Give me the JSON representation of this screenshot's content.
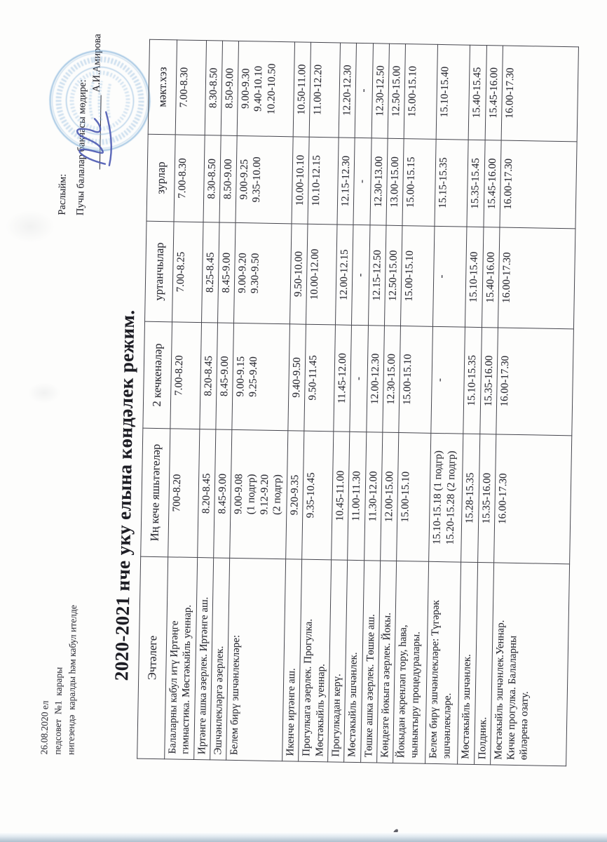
{
  "colors": {
    "ink": "#2a2a32",
    "stamp_blue": "#8db8dd",
    "signature_blue": "#4f5cb4"
  },
  "note_block": {
    "lines": [
      "26.08.2020 ел",
      "педсовет  №1  карары",
      "нигезендә  каралды һәм кабул ителде"
    ]
  },
  "approval": {
    "approve_label": "Раслыйм:",
    "role_line": "Пучы балалар бакчасы мөдире:",
    "signatory": "А.И.Амирова"
  },
  "title": "2020-2021 нче уку елына көндәлек режим.",
  "table": {
    "headers": [
      "Эчтәлеге",
      "Иң кече яшьтәгеләр",
      "2 кечкенәләр",
      "уртанчылар",
      "зурлар",
      "мәкт.хэз"
    ],
    "rows": [
      {
        "label": "Балаларны кабул итү Иртәңге\nгимнастика. Мөстәкыйль  уеннар.",
        "values": [
          "700-8.20",
          "7.00-8.20",
          "7.00-8.25",
          "7.00-8.30",
          "7.00-8.30"
        ]
      },
      {
        "label": "Иртәнге ашка  әзерлек. Иртәнге аш.",
        "values": [
          "8.20-8.45",
          "8.20-8.45",
          "8.25-8.45",
          "8.30-8.50",
          "8.30-8.50"
        ]
      },
      {
        "label": "Эшчәнлекләргә әзерлек.",
        "values": [
          "8.45-9.00",
          "8.45-9.00",
          "8.45-9.00",
          "8.50-9.00",
          "8.50-9.00"
        ]
      },
      {
        "label": "Белем бирү эшчәнлекләре:",
        "values": [
          "9.00-9.08\n(1 подгр)\n9.12-9.20\n(2 подгр)",
          "9.00-9.15\n9.25-9.40",
          "9.00-9.20\n9.30-9.50",
          "9.00-9.25\n9.35-10.00",
          "9.00-9.30\n9.40-10.10\n10.20-10.50"
        ]
      },
      {
        "label": "Икенче иртәнге аш.",
        "values": [
          "9.20-9.35",
          "9.40-9.50",
          "9.50-10.00",
          "10.00-10.10",
          "10.50-11.00"
        ]
      },
      {
        "label": "Прогулкага әзерлек. Прогулка.\nМөстәкыйль  уеннар.",
        "values": [
          "9.35-10.45",
          "9.50-11.45",
          "10.00-12.00",
          "10.10-12.15",
          "11.00-12.20"
        ]
      },
      {
        "label": "Прогулкадан керү.",
        "values": [
          "10.45-11.00",
          "11.45-12.00",
          "12.00-12.15",
          "12.15-12.30",
          "12.20-12.30"
        ]
      },
      {
        "label": "Мөстәкыйль эшчәнлек.",
        "values": [
          "11.00-11.30",
          "-",
          "-",
          "-",
          "-"
        ]
      },
      {
        "label": "Төшке ашка әзерлек. Төшке аш.",
        "values": [
          "11.30-12.00",
          "12.00-12.30",
          "12.15-12.50",
          "12.30-13.00",
          "12.30-12.50"
        ]
      },
      {
        "label": "Көндезге йокыга әзерлек. Йокы.",
        "values": [
          "12.00-15.00",
          "12.30-15.00",
          "12.50-15.00",
          "13.00-15.00",
          "12.50-15.00"
        ]
      },
      {
        "label": "Йокыдан әкренләп тору, һава,\nчыныктыру  процедуралары.",
        "values": [
          "15.00-15.10",
          "15.00-15.10",
          "15.00-15.10",
          "15.00-15.15",
          "15.00-15.10"
        ]
      },
      {
        "label": "Белем бирү эшчәнлекләре: Түгәрәк\nэшчәнлекләре.",
        "values": [
          "15.10-15.18 (1 подгр)\n15.20-15.28 (2 подгр)",
          "-",
          "-",
          "15.15-15.35",
          "15.10-15.40"
        ]
      },
      {
        "label": "Мөстәкыйль эшчәнлек.",
        "values": [
          "15.28-15.35",
          "15.10-15.35",
          "15.10-15.40",
          "15.35-15.45",
          "15.40-15.45"
        ]
      },
      {
        "label": "Полдник.",
        "values": [
          "15.35-16.00",
          "15.35-16.00",
          "15.40-16.00",
          "15.45-16.00",
          "15.45-16.00"
        ]
      },
      {
        "label": "Мөстәкыйль эшчәнлек.Уеннар.\nКичке прогулка. Балаларны\nөйләренә озату.",
        "values": [
          "16.00-17.30",
          "16.00-17.30",
          "16.00-17.30",
          "16.00-17.30",
          "16.00-17.30"
        ]
      }
    ]
  }
}
